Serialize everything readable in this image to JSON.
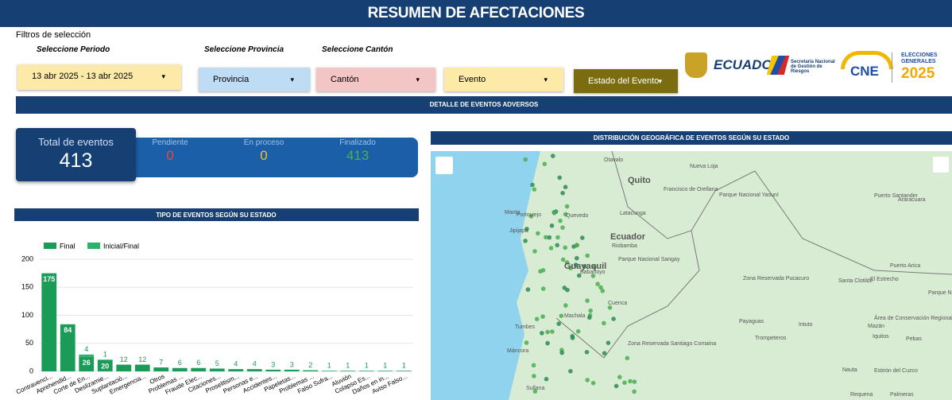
{
  "header": {
    "title": "RESUMEN DE AFECTACIONES"
  },
  "filters": {
    "heading": "Filtros de selección",
    "labels": [
      "Seleccione Periodo",
      "Seleccione Provincia",
      "Seleccione Cantón"
    ],
    "dropdowns": [
      "13 abr 2025 - 13 abr 2025",
      "Provincia",
      "Cantón",
      "Evento",
      "Estado del Evento"
    ]
  },
  "logos": {
    "ecuador": "ECUADOR",
    "sngr": "Secretaría Nacional de Gestión de Riesgos",
    "cne": "CNE",
    "elecciones": "ELECCIONES GENERALES",
    "year": "2025"
  },
  "section_title": "DETALLE DE EVENTOS ADVERSOS",
  "kpis": {
    "total": {
      "label": "Total de eventos",
      "value": 413
    },
    "items": [
      {
        "label": "Pendiente",
        "value": 0,
        "color": "#e84a3c"
      },
      {
        "label": "En proceso",
        "value": 0,
        "color": "#f2c12e"
      },
      {
        "label": "Finalizado",
        "value": 413,
        "color": "#4caf50"
      }
    ]
  },
  "chart_data": {
    "type": "bar",
    "title": "TIPO DE EVENTOS SEGÚN SU ESTADO",
    "categories": [
      "Contravenci...",
      "Aprehendid...",
      "Corte de En...",
      "Deslizamie...",
      "Suplantació...",
      "Emergencia...",
      "Otros",
      "Problemas ...",
      "Fraude Elec...",
      "Citaciones...",
      "Proselitism...",
      "Personas e...",
      "Accidentes...",
      "Papeletas...",
      "Problemas ...",
      "Falso Sufra...",
      "Aluvión",
      "Colapso Es...",
      "Daños en in...",
      "Aviso Falso..."
    ],
    "series": [
      {
        "name": "Final",
        "color": "#1a9b57",
        "values": [
          175,
          84,
          26,
          20,
          12,
          12,
          7,
          6,
          6,
          5,
          4,
          4,
          3,
          3,
          2,
          1,
          1,
          1,
          1,
          1
        ]
      },
      {
        "name": "Inicial/Final",
        "color": "#2bb36a",
        "values": [
          null,
          null,
          4,
          1,
          null,
          null,
          null,
          null,
          null,
          null,
          null,
          null,
          null,
          null,
          null,
          null,
          null,
          null,
          null,
          null
        ]
      }
    ],
    "stacked": true,
    "ylim": [
      0,
      200
    ],
    "yticks": [
      0,
      50,
      100,
      150,
      200
    ],
    "grid": true,
    "legend": "top-left"
  },
  "map": {
    "title": "DISTRIBUCIÓN GEOGRÁFICA DE EVENTOS SEGÚN SU ESTADO",
    "labels": [
      "Otavalo",
      "Nueva Loja",
      "Quito",
      "Francisco de Orellana",
      "Parque Nacional Yasuní",
      "Manta",
      "Portoviejo",
      "Quevedo",
      "Latacunga",
      "Jipijapa",
      "Ecuador",
      "Riobamba",
      "Babahoyo",
      "Parque Nacional Sangay",
      "Guayaquil",
      "Cuenca",
      "Zona Reservada Pucacuro",
      "Machala",
      "Tumbes",
      "Zona Reservada Santiago Comaina",
      "Puerto Santander",
      "Araracuara",
      "Puerto Arica",
      "Santa Clotilde",
      "El Estrecho",
      "Parque Nacional Yaguas",
      "Área de Conservación Regional Ampiyacu",
      "Mazán",
      "Iquitos",
      "Pebas",
      "Payaguas",
      "Intuto",
      "Trompeteros",
      "Nauta",
      "Estirón del Cuzco",
      "Máncora",
      "Sullana",
      "Requena",
      "Palmeras"
    ]
  }
}
